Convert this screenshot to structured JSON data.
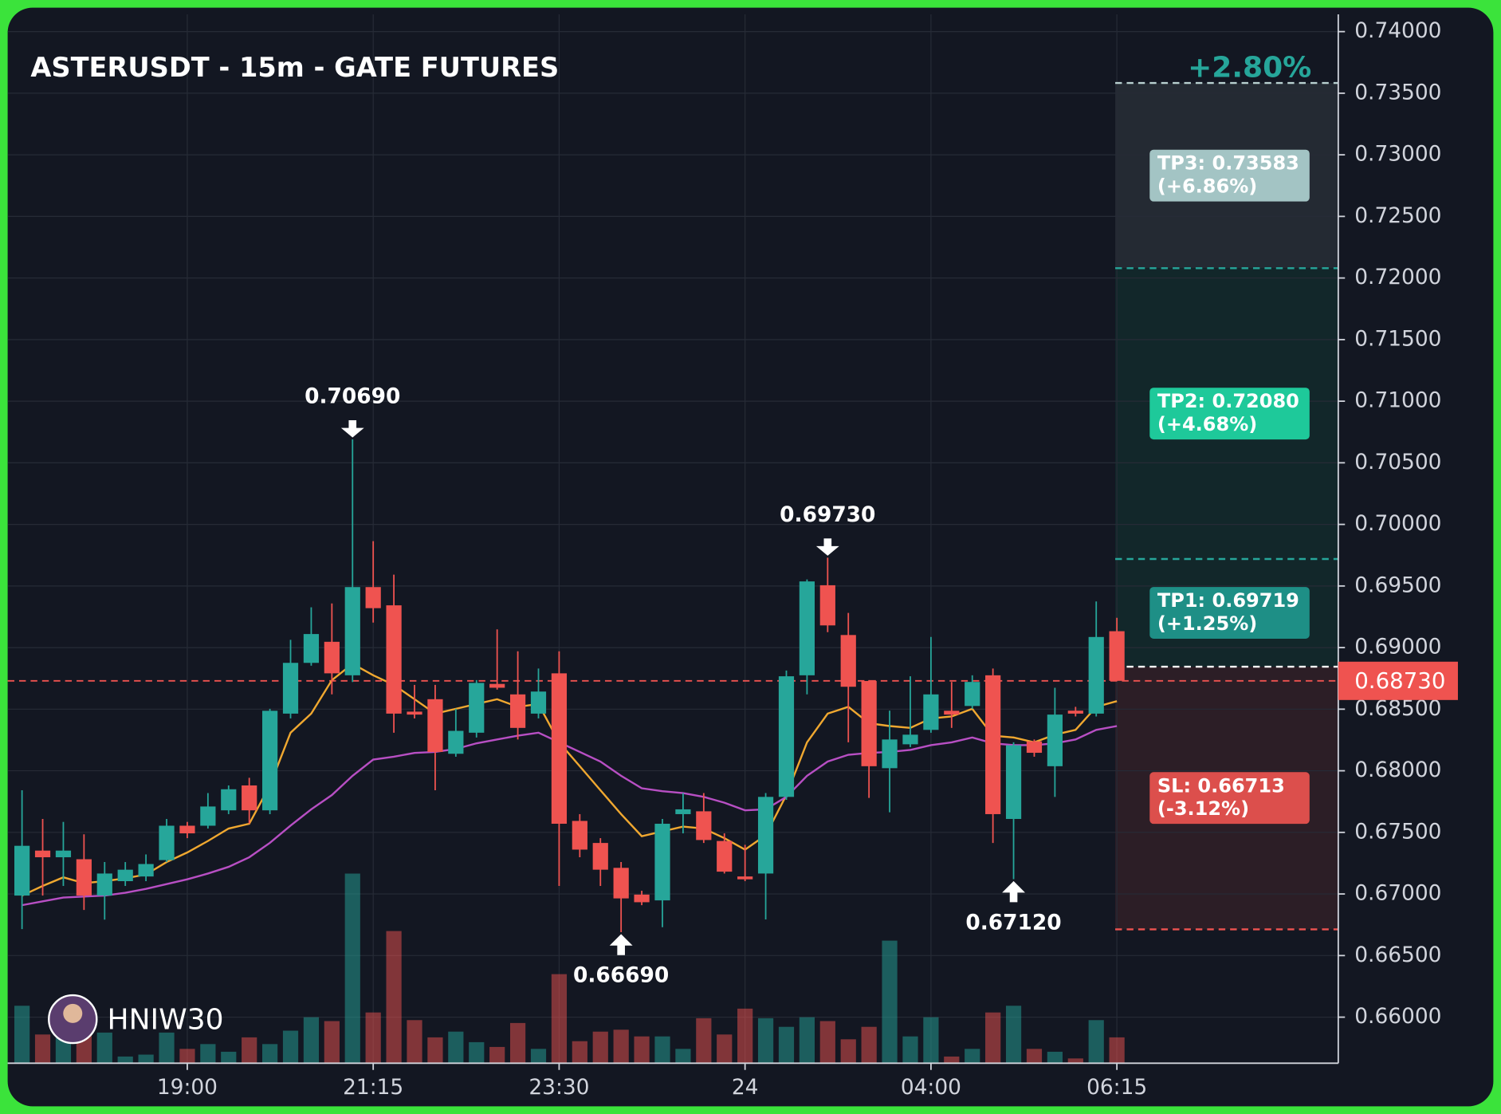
{
  "chart_data": {
    "type": "candlestick",
    "title": "ASTERUSDT - 15m - GATE FUTURES",
    "change_label": "+2.80%",
    "watermark": "HNIW30",
    "categories": [
      null,
      null,
      null,
      null,
      null,
      null,
      null,
      null,
      "19:00",
      null,
      null,
      null,
      null,
      null,
      null,
      null,
      null,
      "21:15",
      null,
      null,
      null,
      null,
      null,
      null,
      null,
      null,
      "23:30",
      null,
      null,
      null,
      null,
      null,
      null,
      null,
      null,
      "24",
      null,
      null,
      null,
      null,
      null,
      null,
      null,
      null,
      "04:00",
      null,
      null,
      null,
      null,
      null,
      null,
      null,
      null,
      "06:15"
    ],
    "open": [
      0.66987,
      0.67352,
      0.67298,
      0.67282,
      0.66987,
      0.67104,
      0.67142,
      0.67275,
      0.67554,
      0.67554,
      0.67679,
      0.67881,
      0.67679,
      0.68464,
      0.68876,
      0.69047,
      0.68775,
      0.69491,
      0.69343,
      0.6848,
      0.68581,
      0.68138,
      0.68309,
      0.68705,
      0.6862,
      0.68464,
      0.68791,
      0.67593,
      0.67414,
      0.67212,
      0.66995,
      0.66948,
      0.67648,
      0.67671,
      0.6743,
      0.67142,
      0.67166,
      0.67788,
      0.68775,
      0.69506,
      0.69102,
      0.68729,
      0.68021,
      0.68215,
      0.68332,
      0.68487,
      0.68526,
      0.68775,
      0.67609,
      0.68239,
      0.68037,
      0.68488,
      0.68464,
      0.69133
    ],
    "high": [
      0.67842,
      0.67609,
      0.67585,
      0.67484,
      0.67259,
      0.67259,
      0.67321,
      0.67609,
      0.67585,
      0.67819,
      0.67881,
      0.67943,
      0.68503,
      0.69063,
      0.69327,
      0.69358,
      0.7069,
      0.69864,
      0.69592,
      0.68697,
      0.68697,
      0.68503,
      0.68736,
      0.69148,
      0.6897,
      0.6883,
      0.6897,
      0.67648,
      0.67453,
      0.67259,
      0.67026,
      0.67609,
      0.67819,
      0.67819,
      0.67492,
      0.67399,
      0.67819,
      0.68814,
      0.69553,
      0.6973,
      0.69281,
      0.68736,
      0.68488,
      0.68767,
      0.69086,
      0.68721,
      0.68775,
      0.6883,
      0.68231,
      0.68254,
      0.68674,
      0.68519,
      0.69374,
      0.69242
    ],
    "low": [
      0.66715,
      0.66987,
      0.67065,
      0.6687,
      0.66792,
      0.67065,
      0.67104,
      0.67259,
      0.67453,
      0.67531,
      0.67648,
      0.6757,
      0.67648,
      0.68425,
      0.68853,
      0.6862,
      0.68721,
      0.69203,
      0.68309,
      0.68425,
      0.67842,
      0.68114,
      0.6827,
      0.68659,
      0.68254,
      0.68425,
      0.67065,
      0.67298,
      0.67065,
      0.6669,
      0.66909,
      0.6673,
      0.67492,
      0.67414,
      0.67166,
      0.67104,
      0.66793,
      0.67764,
      0.6862,
      0.69125,
      0.68231,
      0.6778,
      0.67663,
      0.68192,
      0.68309,
      0.68348,
      0.68503,
      0.67414,
      0.6712,
      0.68114,
      0.67788,
      0.68441,
      0.68441,
      0.6873
    ],
    "close": [
      0.67391,
      0.67298,
      0.67352,
      0.66987,
      0.67166,
      0.67197,
      0.67243,
      0.67554,
      0.67492,
      0.6771,
      0.6785,
      0.67679,
      0.68487,
      0.68876,
      0.6911,
      0.68791,
      0.69491,
      0.6932,
      0.68464,
      0.68456,
      0.68153,
      0.68324,
      0.68713,
      0.68674,
      0.68348,
      0.68643,
      0.6757,
      0.6736,
      0.67197,
      0.66964,
      0.66933,
      0.6757,
      0.67687,
      0.67438,
      0.67181,
      0.67119,
      0.67788,
      0.68767,
      0.69537,
      0.6918,
      0.68682,
      0.68037,
      0.68254,
      0.68293,
      0.6862,
      0.68456,
      0.68721,
      0.67648,
      0.68207,
      0.68146,
      0.68456,
      0.68464,
      0.69086,
      0.6873
    ],
    "volume": [
      60,
      30,
      30,
      32,
      32,
      7,
      9,
      32,
      15,
      20,
      12,
      27,
      20,
      34,
      48,
      44,
      198,
      53,
      138,
      45,
      27,
      33,
      22,
      17,
      42,
      15,
      93,
      23,
      33,
      35,
      28,
      28,
      15,
      47,
      30,
      57,
      47,
      38,
      48,
      44,
      25,
      38,
      128,
      28,
      48,
      7,
      15,
      53,
      60,
      15,
      12,
      5,
      45,
      27
    ],
    "series": [
      {
        "color": "#f0a830",
        "values": [
          0.66987,
          0.67065,
          0.67135,
          0.67088,
          0.67104,
          0.67127,
          0.67158,
          0.67259,
          0.67337,
          0.6743,
          0.67531,
          0.6757,
          0.67881,
          0.68309,
          0.68464,
          0.68736,
          0.68868,
          0.68775,
          0.68697,
          0.68581,
          0.68464,
          0.68503,
          0.68542,
          0.68581,
          0.68519,
          0.68542,
          0.68231,
          0.68037,
          0.67842,
          0.67648,
          0.67469,
          0.67508,
          0.67547,
          0.67531,
          0.67453,
          0.6736,
          0.67477,
          0.67803,
          0.68231,
          0.68464,
          0.68519,
          0.68386,
          0.68363,
          0.68348,
          0.68425,
          0.68441,
          0.68503,
          0.68285,
          0.6827,
          0.68231,
          0.68293,
          0.68332,
          0.68519,
          0.68565
        ]
      },
      {
        "color": "#b84fc4",
        "values": [
          0.66909,
          0.6694,
          0.66971,
          0.66979,
          0.66987,
          0.6701,
          0.67041,
          0.6708,
          0.67119,
          0.67166,
          0.6722,
          0.67298,
          0.67415,
          0.67555,
          0.67687,
          0.67803,
          0.67959,
          0.68091,
          0.68114,
          0.68145,
          0.68153,
          0.68177,
          0.68223,
          0.68254,
          0.68285,
          0.68309,
          0.68231,
          0.68153,
          0.68075,
          0.67959,
          0.67858,
          0.67834,
          0.67819,
          0.67788,
          0.67741,
          0.67679,
          0.67687,
          0.67788,
          0.67959,
          0.68075,
          0.6813,
          0.68145,
          0.68153,
          0.68169,
          0.68208,
          0.68231,
          0.6827,
          0.68223,
          0.68208,
          0.68208,
          0.68223,
          0.68254,
          0.68332,
          0.68363
        ]
      }
    ],
    "up_color": "#26a69a",
    "down_color": "#ef5350",
    "ylim": [
      0.65626,
      0.7414
    ],
    "yticks": [
      {
        "value": 0.66,
        "label": "0.66000"
      },
      {
        "value": 0.665,
        "label": "0.66500"
      },
      {
        "value": 0.67,
        "label": "0.67000"
      },
      {
        "value": 0.675,
        "label": "0.67500"
      },
      {
        "value": 0.68,
        "label": "0.68000"
      },
      {
        "value": 0.685,
        "label": "0.68500"
      },
      {
        "value": 0.69,
        "label": "0.69000"
      },
      {
        "value": 0.695,
        "label": "0.69500"
      },
      {
        "value": 0.7,
        "label": "0.70000"
      },
      {
        "value": 0.705,
        "label": "0.70500"
      },
      {
        "value": 0.71,
        "label": "0.71000"
      },
      {
        "value": 0.715,
        "label": "0.71500"
      },
      {
        "value": 0.72,
        "label": "0.72000"
      },
      {
        "value": 0.725,
        "label": "0.72500"
      },
      {
        "value": 0.73,
        "label": "0.73000"
      },
      {
        "value": 0.735,
        "label": "0.73500"
      },
      {
        "value": 0.74,
        "label": "0.74000"
      }
    ],
    "grid": true,
    "current_price": {
      "value": 0.6873,
      "label": "0.68730"
    },
    "entry": 0.68845,
    "targets": [
      {
        "label": "TP3: 0.73583",
        "change": "(+6.86%)",
        "value": 0.73583,
        "color": "#a3c4c4",
        "line_color": "#b8d0d0"
      },
      {
        "label": "TP2: 0.72080",
        "change": "(+4.68%)",
        "value": 0.7208,
        "color": "#1ec99a",
        "line_color": "#26a69a"
      },
      {
        "label": "TP1: 0.69719",
        "change": "(+1.25%)",
        "value": 0.69719,
        "color": "#1e8f86",
        "line_color": "#26a69a"
      }
    ],
    "stop_loss": {
      "label": "SL: 0.66713",
      "change": "(-3.12%)",
      "value": 0.66713,
      "color": "#dc4f4c",
      "line_color": "#ef5350"
    },
    "zone_colors": [
      "#242a33",
      "#12272a",
      "#2c1e26"
    ],
    "annotations": [
      {
        "index": 16,
        "value": 0.7069,
        "label": "0.70690",
        "direction": "down"
      },
      {
        "index": 29,
        "value": 0.6669,
        "label": "0.66690",
        "direction": "up"
      },
      {
        "index": 39,
        "value": 0.6973,
        "label": "0.69730",
        "direction": "down"
      },
      {
        "index": 48,
        "value": 0.6712,
        "label": "0.67120",
        "direction": "up"
      }
    ]
  }
}
